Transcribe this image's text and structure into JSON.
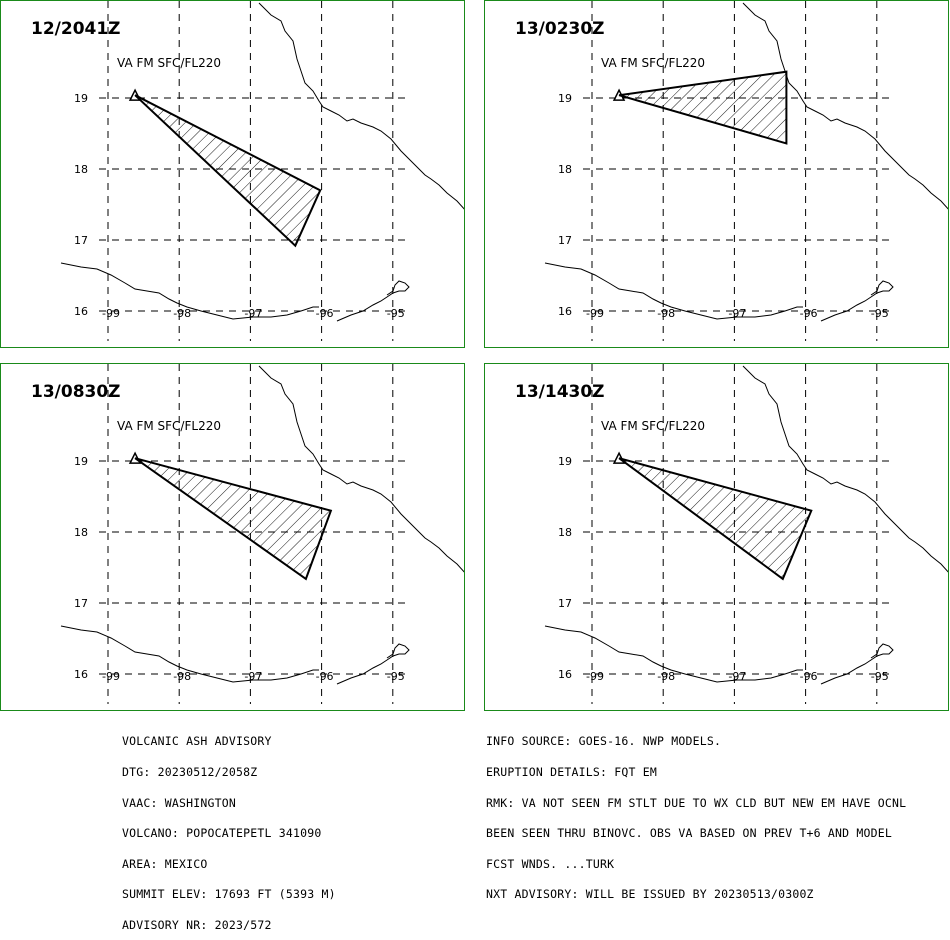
{
  "panels": [
    {
      "time": "12/2041Z",
      "description": "VA FM SFC/FL220",
      "polygon": [
        [
          -98.62,
          19.04
        ],
        [
          -96.02,
          17.7
        ],
        [
          -96.37,
          16.92
        ]
      ]
    },
    {
      "time": "13/0230Z",
      "description": "VA FM SFC/FL220",
      "polygon": [
        [
          -98.62,
          19.04
        ],
        [
          -96.27,
          19.37
        ],
        [
          -96.27,
          18.36
        ]
      ]
    },
    {
      "time": "13/0830Z",
      "description": "VA FM SFC/FL220",
      "polygon": [
        [
          -98.62,
          19.04
        ],
        [
          -95.87,
          18.3
        ],
        [
          -96.22,
          17.34
        ]
      ]
    },
    {
      "time": "13/1430Z",
      "description": "VA FM SFC/FL220",
      "polygon": [
        [
          -98.62,
          19.04
        ],
        [
          -95.92,
          18.3
        ],
        [
          -96.32,
          17.34
        ]
      ]
    }
  ],
  "volcano_symbol": "volcano-triangle-icon",
  "grid": {
    "longitudes": [
      -99,
      -98,
      -97,
      -96,
      -95
    ],
    "latitudes": [
      19,
      18,
      17,
      16
    ],
    "lon_labels": [
      "-99",
      "-98",
      "-97",
      "-96",
      "-95"
    ],
    "lat_labels": [
      "19",
      "18",
      "17",
      "16"
    ]
  },
  "colors": {
    "panel_border": "#1a8a1a",
    "ash_fill_hatch": "#000000"
  },
  "advisory": {
    "left_lines": [
      "VOLCANIC ASH ADVISORY",
      "DTG: 20230512/2058Z",
      "VAAC: WASHINGTON",
      "VOLCANO: POPOCATEPETL 341090",
      "AREA: MEXICO",
      "SUMMIT ELEV: 17693 FT (5393 M)",
      "ADVISORY NR: 2023/572"
    ],
    "right_lines": [
      "INFO SOURCE: GOES-16. NWP MODELS.",
      "ERUPTION DETAILS: FQT EM",
      "RMK: VA NOT SEEN FM STLT DUE TO WX CLD BUT NEW EM HAVE OCNL",
      "BEEN SEEN THRU BINOVC. OBS VA BASED ON PREV T+6 AND MODEL",
      "FCST WNDS. ...TURK",
      "NXT ADVISORY: WILL BE ISSUED BY 20230513/0300Z"
    ]
  }
}
